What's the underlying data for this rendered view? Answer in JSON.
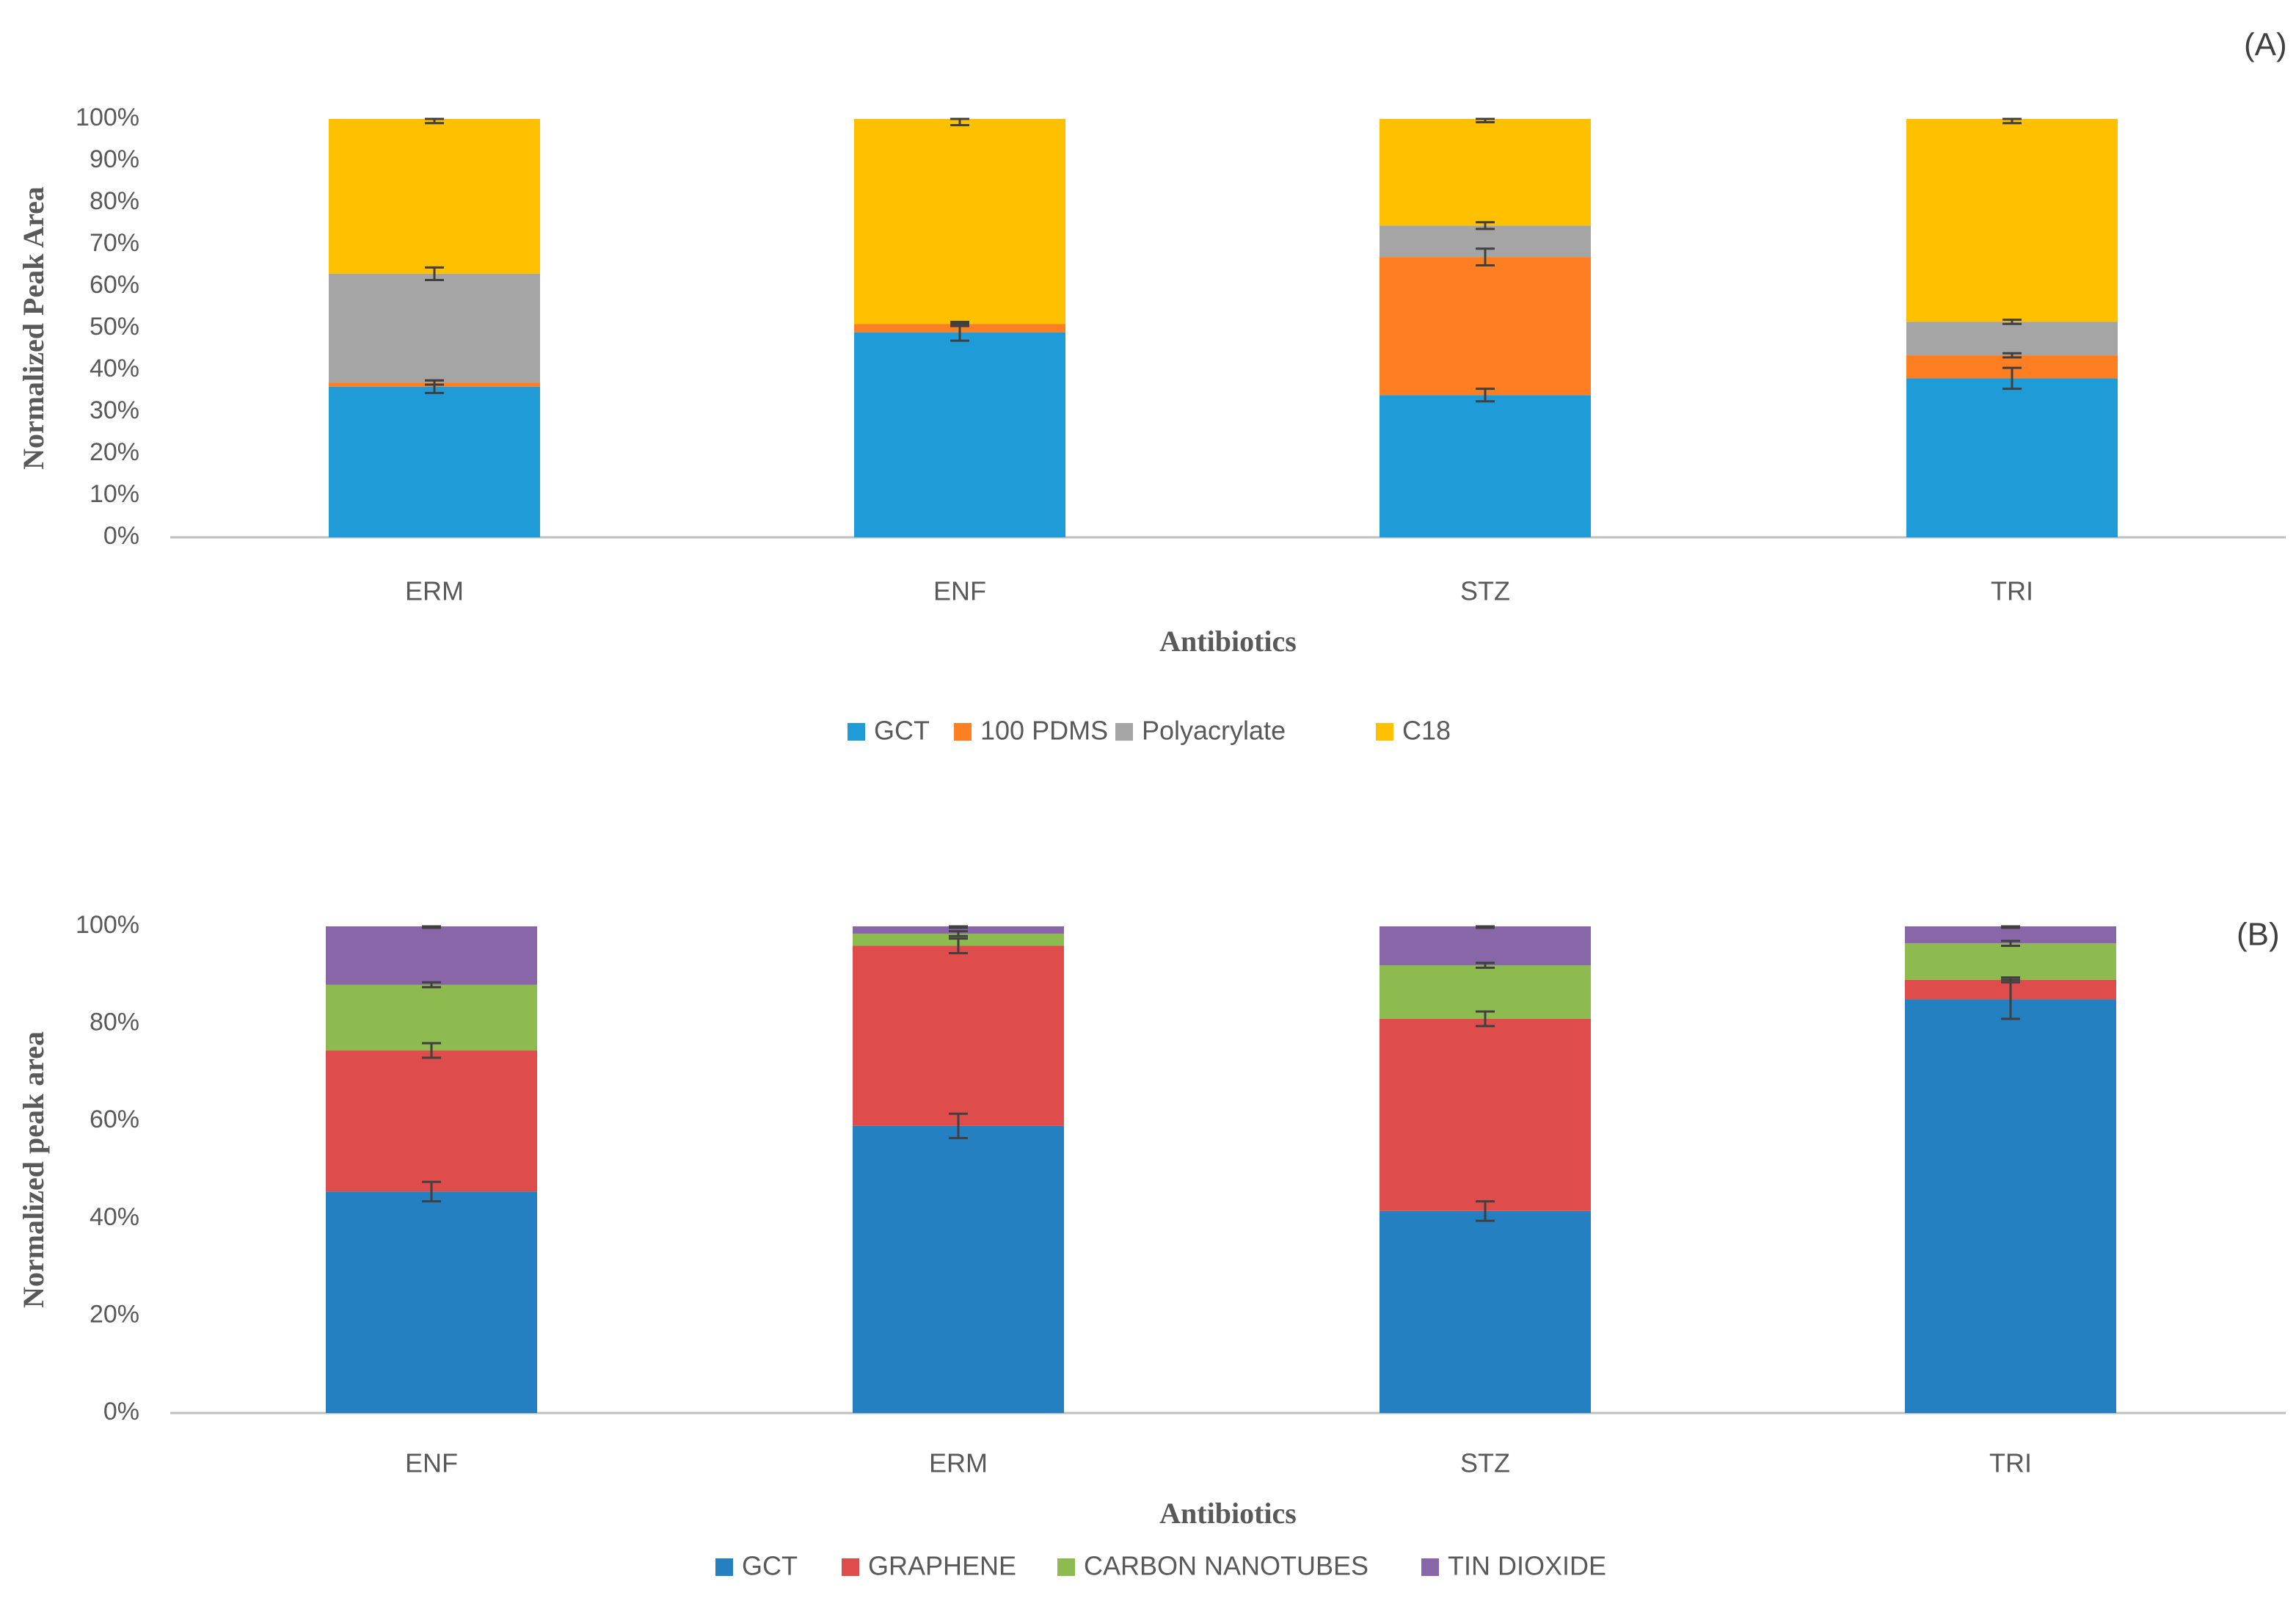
{
  "chart_data": [
    {
      "panel": "(A)",
      "type": "bar",
      "stacked": true,
      "normalized": true,
      "categories": [
        "ERM",
        "ENF",
        "STZ",
        "TRI"
      ],
      "series": [
        {
          "name": "GCT",
          "color": "#1f9bd8",
          "values": [
            36,
            49,
            34,
            38
          ],
          "errors": [
            1.5,
            2,
            1.5,
            2.5
          ]
        },
        {
          "name": "100 PDMS",
          "color": "#fd7f22",
          "values": [
            1,
            2,
            33,
            5.5
          ],
          "errors": [
            0.5,
            0.5,
            2,
            0.5
          ]
        },
        {
          "name": "Polyacrylate",
          "color": "#a5a5a5",
          "values": [
            26,
            0,
            7.5,
            8
          ],
          "errors": [
            1.5,
            0,
            0.8,
            0.5
          ]
        },
        {
          "name": "C18",
          "color": "#ffc000",
          "values": [
            37,
            49,
            25.5,
            48.5
          ],
          "errors": [
            1,
            1.5,
            0.8,
            1
          ]
        }
      ],
      "title": "",
      "xlabel": "Antibiotics",
      "ylabel": "Normalized Peak Area",
      "yticks": [
        "0%",
        "10%",
        "20%",
        "30%",
        "40%",
        "50%",
        "60%",
        "70%",
        "80%",
        "90%",
        "100%"
      ],
      "ylim": [
        0,
        100
      ],
      "legend": "bottom"
    },
    {
      "panel": "(B)",
      "type": "bar",
      "stacked": true,
      "normalized": true,
      "categories": [
        "ENF",
        "ERM",
        "STZ",
        "TRI"
      ],
      "series": [
        {
          "name": "GCT",
          "color": "#2580c2",
          "values": [
            45.5,
            59,
            41.5,
            85
          ],
          "errors": [
            2,
            2.5,
            2,
            4
          ]
        },
        {
          "name": "GRAPHENE",
          "color": "#de4d4b",
          "values": [
            29,
            37,
            39.5,
            4
          ],
          "errors": [
            1.5,
            1.5,
            1.5,
            0.5
          ]
        },
        {
          "name": "CARBON NANOTUBES",
          "color": "#8dbb4f",
          "values": [
            13.5,
            2.5,
            11,
            7.5
          ],
          "errors": [
            0.5,
            0.5,
            0.5,
            0.5
          ]
        },
        {
          "name": "TIN DIOXIDE",
          "color": "#8866a8",
          "values": [
            12,
            1.5,
            8,
            3.5
          ],
          "errors": [
            0.3,
            0.3,
            0.3,
            0.3
          ]
        }
      ],
      "title": "",
      "xlabel": "Antibiotics",
      "ylabel": "Normalized peak area",
      "yticks": [
        "0%",
        "20%",
        "40%",
        "60%",
        "80%",
        "100%"
      ],
      "ylim": [
        0,
        100
      ],
      "legend": "bottom"
    }
  ]
}
